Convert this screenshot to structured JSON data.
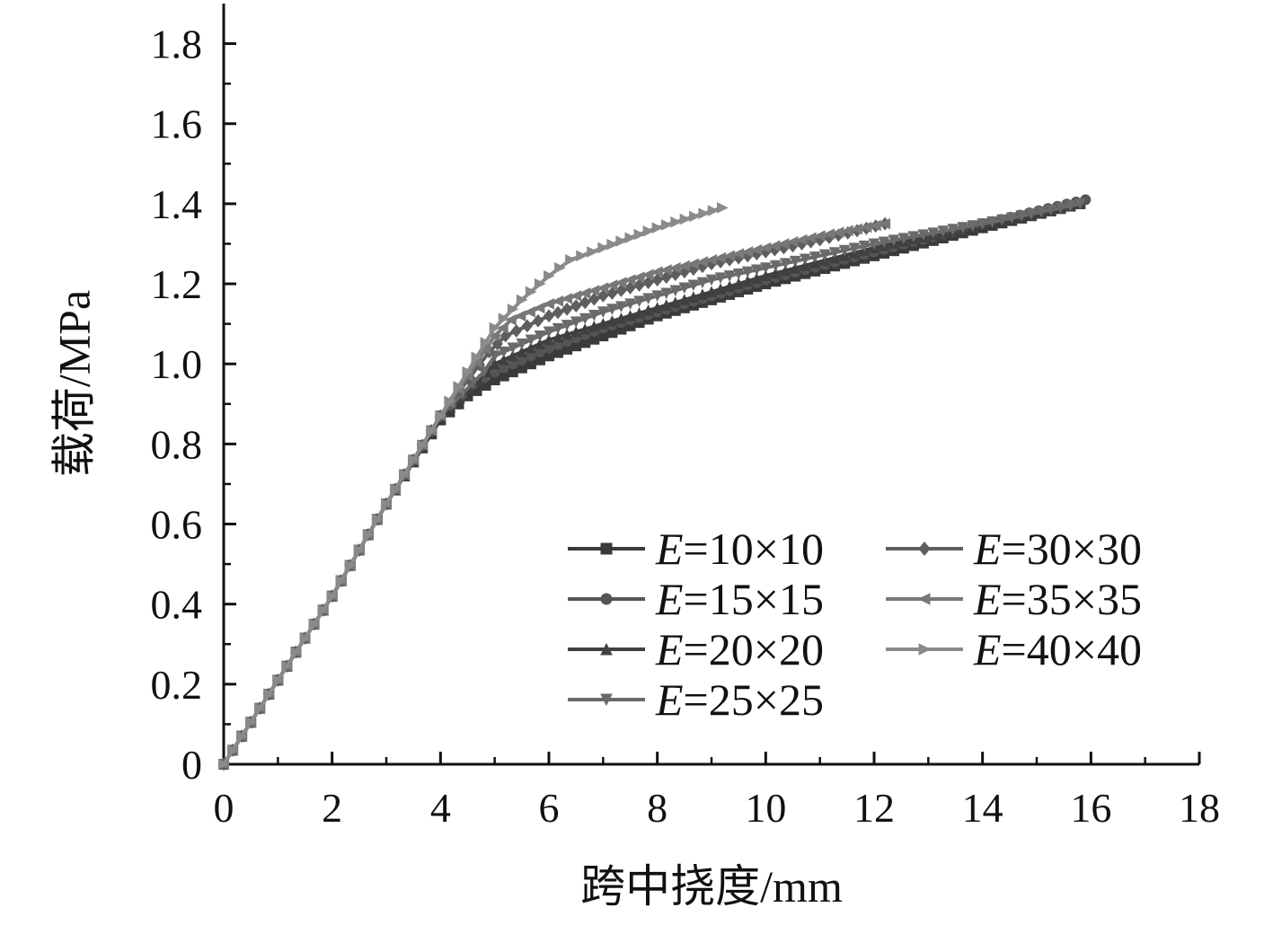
{
  "chart_data": {
    "type": "line",
    "title": "",
    "xlabel": "跨中挠度/mm",
    "ylabel": "载荷/MPa",
    "xlim": [
      0,
      18
    ],
    "ylim": [
      0,
      1.9
    ],
    "x_ticks": [
      0,
      2,
      4,
      6,
      8,
      10,
      12,
      14,
      16,
      18
    ],
    "x_tick_labels": [
      "0",
      "2",
      "4",
      "6",
      "8",
      "10",
      "12",
      "14",
      "16",
      "18"
    ],
    "y_ticks": [
      0,
      0.2,
      0.4,
      0.6,
      0.8,
      1.0,
      1.2,
      1.4,
      1.6,
      1.8
    ],
    "y_tick_labels": [
      "0",
      "0.2",
      "0.4",
      "0.6",
      "0.8",
      "1.0",
      "1.2",
      "1.4",
      "1.6",
      "1.8"
    ],
    "grid": false,
    "legend": {
      "placement": "bottom-right",
      "columns": 2
    },
    "series": [
      {
        "name": "E=10×10",
        "name_italic": "E",
        "name_rest": "=10×10",
        "color": "#3a3a3a",
        "marker": "square",
        "x": [
          0,
          1,
          2,
          3,
          4,
          4.5,
          5,
          6,
          7,
          8,
          9,
          10,
          12,
          14,
          15.8
        ],
        "y": [
          0,
          0.21,
          0.42,
          0.65,
          0.86,
          0.92,
          0.96,
          1.02,
          1.07,
          1.12,
          1.16,
          1.2,
          1.27,
          1.34,
          1.4
        ]
      },
      {
        "name": "E=15×15",
        "name_italic": "E",
        "name_rest": "=15×15",
        "color": "#555555",
        "marker": "circle",
        "x": [
          0,
          1,
          2,
          3,
          4,
          4.6,
          5,
          6,
          7,
          8,
          9,
          10,
          12,
          14,
          15.9
        ],
        "y": [
          0,
          0.21,
          0.42,
          0.65,
          0.87,
          0.95,
          0.98,
          1.04,
          1.09,
          1.13,
          1.17,
          1.21,
          1.28,
          1.35,
          1.41
        ]
      },
      {
        "name": "E=20×20",
        "name_italic": "E",
        "name_rest": "=20×20",
        "color": "#404040",
        "marker": "triangle-up",
        "x": [
          0,
          1,
          2,
          3,
          4,
          4.7,
          5,
          6,
          7,
          8,
          9,
          10,
          12,
          14,
          15.8
        ],
        "y": [
          0,
          0.21,
          0.42,
          0.65,
          0.87,
          0.96,
          1.0,
          1.06,
          1.1,
          1.14,
          1.18,
          1.22,
          1.29,
          1.35,
          1.4
        ]
      },
      {
        "name": "E=25×25",
        "name_italic": "E",
        "name_rest": "=25×25",
        "color": "#6a6a6a",
        "marker": "triangle-down",
        "x": [
          0,
          1,
          2,
          3,
          4,
          4.8,
          5,
          6,
          7,
          8,
          9,
          10,
          12,
          14,
          15.8
        ],
        "y": [
          0,
          0.21,
          0.42,
          0.65,
          0.87,
          0.98,
          1.02,
          1.08,
          1.13,
          1.17,
          1.21,
          1.24,
          1.3,
          1.35,
          1.4
        ]
      },
      {
        "name": "E=30×30",
        "name_italic": "E",
        "name_rest": "=30×30",
        "color": "#5e5e5e",
        "marker": "diamond",
        "x": [
          0,
          1,
          2,
          3,
          4,
          4.9,
          5.2,
          6,
          7,
          8,
          9,
          10,
          11,
          12.2
        ],
        "y": [
          0,
          0.21,
          0.42,
          0.65,
          0.87,
          1.03,
          1.07,
          1.12,
          1.17,
          1.21,
          1.25,
          1.28,
          1.31,
          1.35
        ]
      },
      {
        "name": "E=35×35",
        "name_italic": "E",
        "name_rest": "=35×35",
        "color": "#787878",
        "marker": "triangle-left",
        "x": [
          0,
          1,
          2,
          3,
          4,
          5,
          5.3,
          6,
          7,
          8,
          9,
          10,
          11,
          12.2
        ],
        "y": [
          0,
          0.21,
          0.42,
          0.65,
          0.87,
          1.07,
          1.11,
          1.15,
          1.19,
          1.23,
          1.26,
          1.29,
          1.32,
          1.35
        ]
      },
      {
        "name": "E=40×40",
        "name_italic": "E",
        "name_rest": "=40×40",
        "color": "#8a8a8a",
        "marker": "triangle-right",
        "x": [
          0,
          1,
          2,
          3,
          4,
          5,
          5.5,
          6,
          6.4,
          7,
          8,
          9.2
        ],
        "y": [
          0,
          0.21,
          0.42,
          0.65,
          0.87,
          1.09,
          1.16,
          1.22,
          1.26,
          1.29,
          1.34,
          1.39
        ]
      }
    ]
  }
}
